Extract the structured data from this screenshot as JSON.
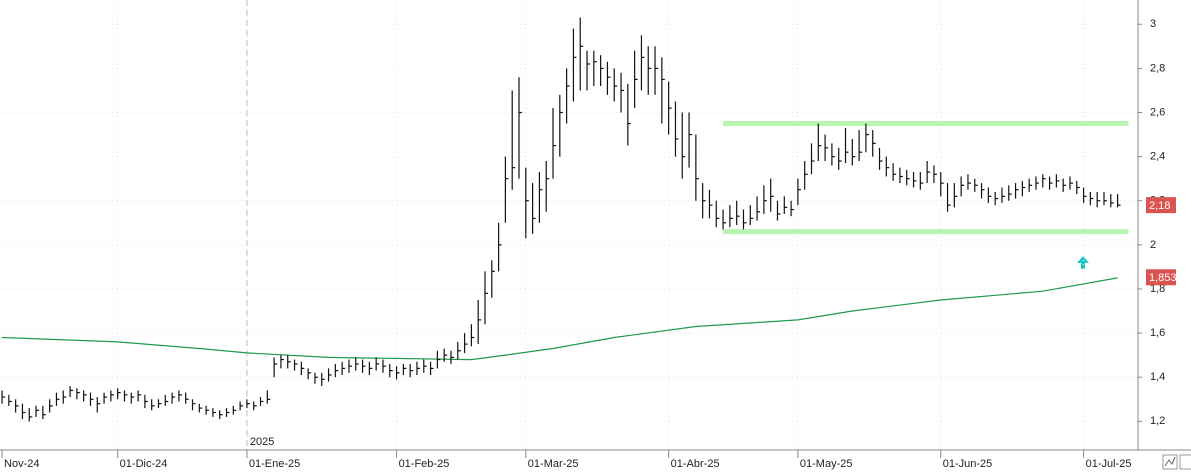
{
  "chart_data": {
    "type": "ohlc",
    "xlim": [
      -0.3,
      167
    ],
    "ylim": [
      1.07,
      3.11
    ],
    "xticks": [
      {
        "value": 0,
        "label": "Nov-24"
      },
      {
        "value": 17,
        "label": "01-Dic-24"
      },
      {
        "value": 36,
        "label": "01-Ene-25"
      },
      {
        "value": 58,
        "label": "01-Feb-25"
      },
      {
        "value": 77,
        "label": "01-Mar-25"
      },
      {
        "value": 98,
        "label": "01-Abr-25"
      },
      {
        "value": 117,
        "label": "01-May-25"
      },
      {
        "value": 138,
        "label": "01-Jun-25"
      },
      {
        "value": 159,
        "label": "01-Jul-25"
      }
    ],
    "yticks": [
      {
        "value": 1.2,
        "label": "1,2"
      },
      {
        "value": 1.4,
        "label": "1,4"
      },
      {
        "value": 1.6,
        "label": "1,6"
      },
      {
        "value": 1.8,
        "label": "1,8"
      },
      2,
      {
        "value": 2.2,
        "label": "2,2"
      },
      {
        "value": 2.4,
        "label": "2,4"
      },
      {
        "value": 2.6,
        "label": "2,6"
      },
      {
        "value": 2.8,
        "label": "2,8"
      },
      3
    ],
    "grid": true,
    "year_marker": {
      "value": 36,
      "label": "2025"
    },
    "color": "#111111",
    "high": [
      1.34,
      1.32,
      1.3,
      1.28,
      1.26,
      1.27,
      1.27,
      1.3,
      1.33,
      1.34,
      1.36,
      1.35,
      1.34,
      1.33,
      1.31,
      1.33,
      1.34,
      1.35,
      1.34,
      1.33,
      1.34,
      1.32,
      1.3,
      1.3,
      1.32,
      1.33,
      1.34,
      1.33,
      1.3,
      1.28,
      1.27,
      1.26,
      1.25,
      1.26,
      1.27,
      1.29,
      1.3,
      1.29,
      1.31,
      1.34,
      1.49,
      1.5,
      1.5,
      1.48,
      1.47,
      1.44,
      1.42,
      1.42,
      1.44,
      1.46,
      1.47,
      1.48,
      1.49,
      1.48,
      1.47,
      1.49,
      1.48,
      1.46,
      1.45,
      1.46,
      1.46,
      1.47,
      1.48,
      1.47,
      1.52,
      1.53,
      1.52,
      1.56,
      1.6,
      1.64,
      1.75,
      1.88,
      1.93,
      2.1,
      2.4,
      2.7,
      2.76,
      2.35,
      2.28,
      2.33,
      2.38,
      2.62,
      2.68,
      2.8,
      2.98,
      3.03,
      2.88,
      2.88,
      2.86,
      2.83,
      2.8,
      2.78,
      2.73,
      2.88,
      2.95,
      2.9,
      2.9,
      2.85,
      2.74,
      2.65,
      2.6,
      2.6,
      2.5,
      2.28,
      2.25,
      2.2,
      2.16,
      2.18,
      2.2,
      2.16,
      2.18,
      2.22,
      2.27,
      2.3,
      2.2,
      2.22,
      2.2,
      2.3,
      2.38,
      2.46,
      2.55,
      2.5,
      2.46,
      2.44,
      2.53,
      2.48,
      2.52,
      2.55,
      2.52,
      2.44,
      2.4,
      2.37,
      2.35,
      2.34,
      2.33,
      2.33,
      2.38,
      2.36,
      2.33,
      2.28,
      2.28,
      2.31,
      2.32,
      2.3,
      2.28,
      2.26,
      2.24,
      2.26,
      2.27,
      2.28,
      2.29,
      2.3,
      2.31,
      2.32,
      2.31,
      2.32,
      2.3,
      2.31,
      2.29,
      2.26,
      2.24,
      2.24,
      2.24,
      2.23,
      2.23
    ],
    "low": [
      1.28,
      1.27,
      1.24,
      1.21,
      1.2,
      1.22,
      1.21,
      1.24,
      1.27,
      1.28,
      1.31,
      1.3,
      1.29,
      1.27,
      1.24,
      1.28,
      1.29,
      1.3,
      1.29,
      1.28,
      1.29,
      1.26,
      1.25,
      1.26,
      1.27,
      1.28,
      1.29,
      1.28,
      1.25,
      1.24,
      1.23,
      1.22,
      1.21,
      1.22,
      1.23,
      1.25,
      1.26,
      1.25,
      1.27,
      1.28,
      1.4,
      1.44,
      1.44,
      1.43,
      1.41,
      1.39,
      1.37,
      1.36,
      1.38,
      1.4,
      1.41,
      1.42,
      1.43,
      1.42,
      1.41,
      1.43,
      1.42,
      1.4,
      1.39,
      1.41,
      1.4,
      1.41,
      1.42,
      1.41,
      1.44,
      1.47,
      1.46,
      1.48,
      1.51,
      1.54,
      1.55,
      1.64,
      1.76,
      1.88,
      2.1,
      2.25,
      2.3,
      2.03,
      2.05,
      2.1,
      2.15,
      2.3,
      2.4,
      2.55,
      2.65,
      2.7,
      2.7,
      2.72,
      2.72,
      2.68,
      2.65,
      2.6,
      2.45,
      2.62,
      2.7,
      2.68,
      2.68,
      2.55,
      2.5,
      2.4,
      2.3,
      2.35,
      2.2,
      2.12,
      2.12,
      2.08,
      2.07,
      2.08,
      2.09,
      2.07,
      2.09,
      2.11,
      2.14,
      2.15,
      2.11,
      2.14,
      2.13,
      2.18,
      2.25,
      2.32,
      2.38,
      2.38,
      2.36,
      2.34,
      2.37,
      2.36,
      2.38,
      2.42,
      2.4,
      2.34,
      2.31,
      2.29,
      2.28,
      2.27,
      2.26,
      2.25,
      2.28,
      2.28,
      2.22,
      2.15,
      2.17,
      2.22,
      2.25,
      2.24,
      2.21,
      2.19,
      2.18,
      2.19,
      2.2,
      2.21,
      2.22,
      2.24,
      2.25,
      2.26,
      2.25,
      2.26,
      2.24,
      2.25,
      2.23,
      2.19,
      2.18,
      2.17,
      2.18,
      2.17,
      2.17
    ],
    "close": [
      1.31,
      1.29,
      1.27,
      1.24,
      1.22,
      1.25,
      1.23,
      1.27,
      1.3,
      1.31,
      1.34,
      1.33,
      1.32,
      1.3,
      1.28,
      1.31,
      1.32,
      1.33,
      1.32,
      1.31,
      1.32,
      1.29,
      1.27,
      1.28,
      1.29,
      1.31,
      1.32,
      1.3,
      1.28,
      1.26,
      1.25,
      1.24,
      1.23,
      1.24,
      1.25,
      1.27,
      1.28,
      1.27,
      1.29,
      1.3,
      1.46,
      1.48,
      1.47,
      1.46,
      1.44,
      1.42,
      1.4,
      1.39,
      1.41,
      1.43,
      1.44,
      1.45,
      1.46,
      1.45,
      1.44,
      1.46,
      1.45,
      1.43,
      1.42,
      1.44,
      1.43,
      1.44,
      1.45,
      1.44,
      1.48,
      1.5,
      1.49,
      1.52,
      1.55,
      1.58,
      1.66,
      1.78,
      1.88,
      2.0,
      2.3,
      2.35,
      2.6,
      2.2,
      2.12,
      2.25,
      2.3,
      2.45,
      2.6,
      2.72,
      2.85,
      2.9,
      2.82,
      2.83,
      2.8,
      2.76,
      2.72,
      2.7,
      2.55,
      2.75,
      2.85,
      2.8,
      2.8,
      2.75,
      2.62,
      2.48,
      2.4,
      2.5,
      2.3,
      2.2,
      2.18,
      2.12,
      2.1,
      2.12,
      2.13,
      2.1,
      2.12,
      2.15,
      2.2,
      2.22,
      2.14,
      2.17,
      2.16,
      2.25,
      2.32,
      2.38,
      2.45,
      2.44,
      2.4,
      2.38,
      2.42,
      2.4,
      2.42,
      2.5,
      2.46,
      2.38,
      2.35,
      2.32,
      2.31,
      2.3,
      2.29,
      2.28,
      2.33,
      2.32,
      2.28,
      2.18,
      2.22,
      2.27,
      2.28,
      2.27,
      2.25,
      2.22,
      2.21,
      2.22,
      2.23,
      2.25,
      2.26,
      2.27,
      2.28,
      2.3,
      2.28,
      2.29,
      2.27,
      2.28,
      2.26,
      2.22,
      2.21,
      2.2,
      2.2,
      2.19,
      2.18
    ],
    "ma": {
      "color": "#1e9a4a",
      "x": [
        0,
        17,
        29,
        36,
        48,
        69,
        74,
        81,
        90,
        102,
        117,
        125,
        138,
        153,
        164
      ],
      "values": [
        1.58,
        1.56,
        1.53,
        1.51,
        1.49,
        1.48,
        1.5,
        1.53,
        1.58,
        1.63,
        1.66,
        1.7,
        1.75,
        1.79,
        1.85
      ]
    },
    "levels": {
      "color": "#b8f5b0",
      "lines": [
        {
          "value": 2.55,
          "from": 106,
          "to": 165.6
        },
        {
          "value": 2.06,
          "from": 106,
          "to": 165.6
        }
      ]
    },
    "price_labels": {
      "color": "#d9534f",
      "items": [
        {
          "value": 2.18,
          "label": "2,18"
        },
        {
          "value": 1.853,
          "label": "1,853"
        }
      ]
    }
  }
}
